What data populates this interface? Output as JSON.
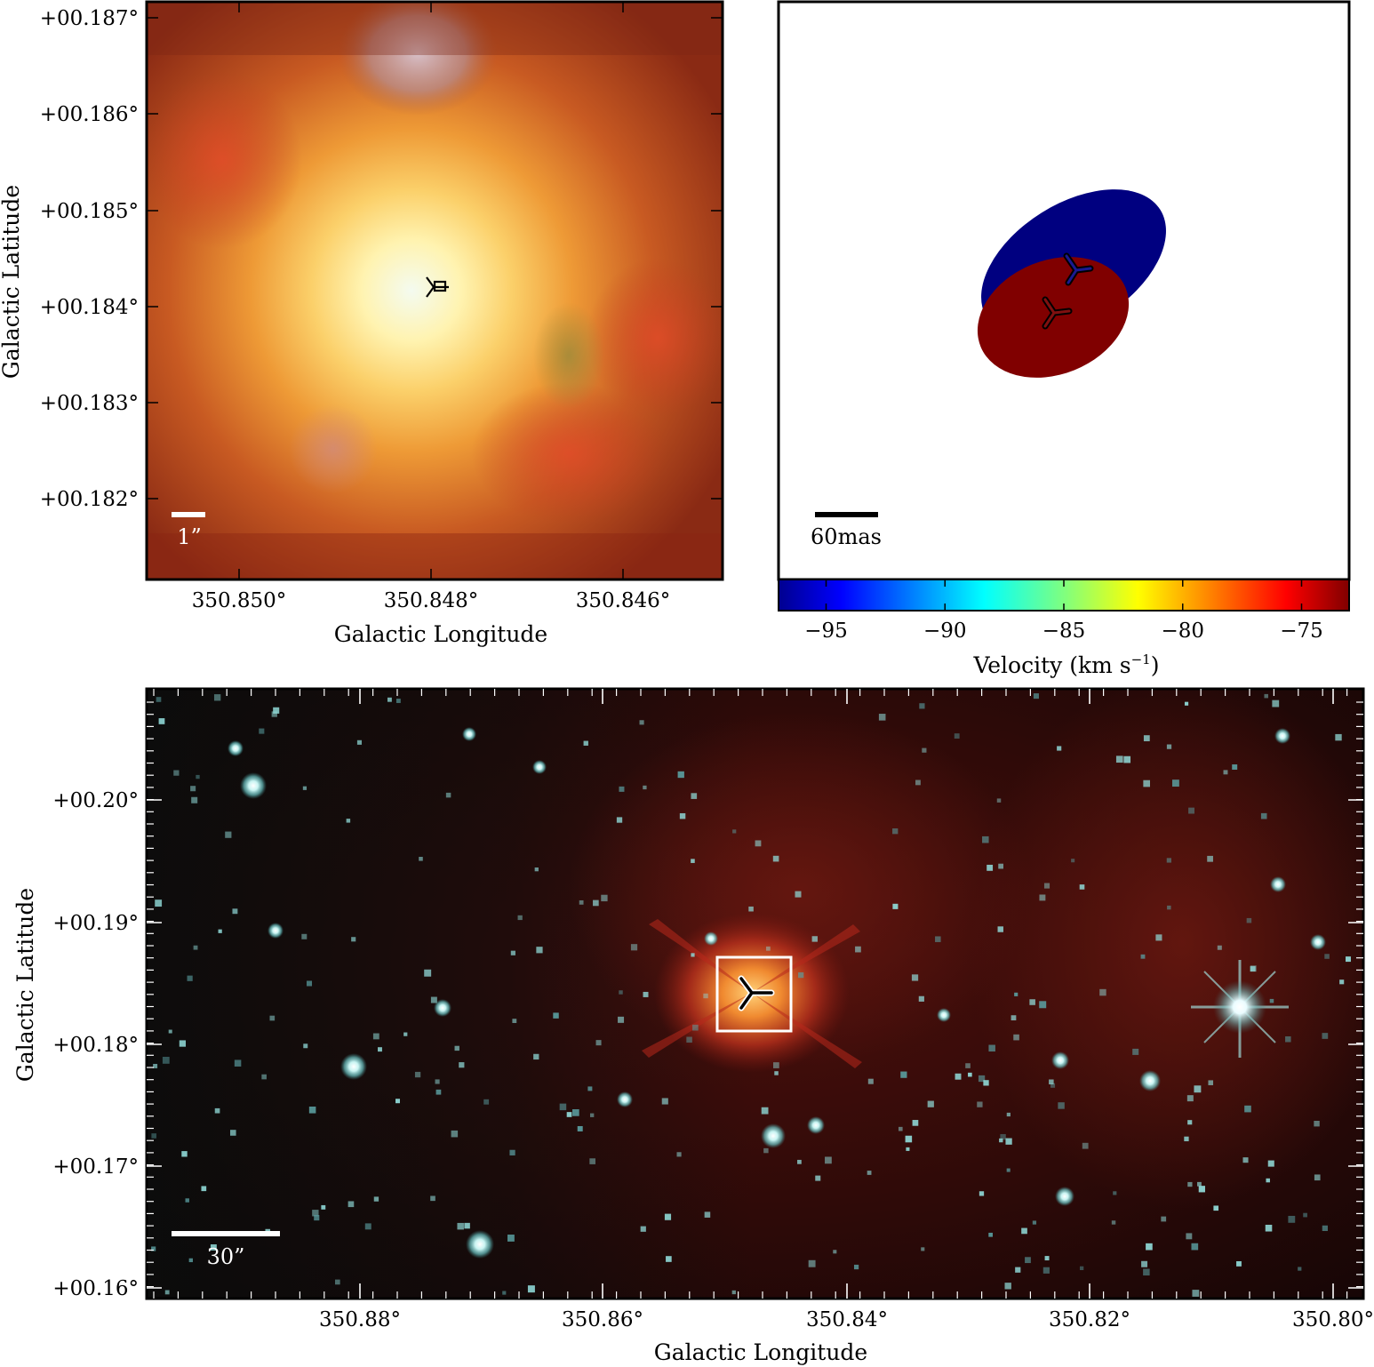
{
  "figure": {
    "top_left_panel": {
      "xlabel": "Galactic Longitude",
      "ylabel": "Galactic Latitude",
      "x_ticks": [
        "350.850°",
        "350.848°",
        "350.846°"
      ],
      "y_ticks": [
        "+00.187°",
        "+00.186°",
        "+00.185°",
        "+00.184°",
        "+00.183°",
        "+00.182°"
      ],
      "scale_bar_label": "1”",
      "image": "false-color infrared zoom of a bright compact source with maser markers at center",
      "colors": {
        "core": "#fffbe6",
        "mid": "#f3a23c",
        "outer": "#b8401f",
        "edge": "#7a1e10",
        "top_blob": "#c9a6b0"
      }
    },
    "top_right_panel": {
      "scale_bar_label": "60mas",
      "colorbar": {
        "label": "Velocity (km s",
        "label_sup": "−1",
        "label_end": ")",
        "ticks": [
          "−95",
          "−90",
          "−85",
          "−80",
          "−75"
        ],
        "range": [
          -97,
          -73
        ]
      },
      "colors": {
        "blue_spot": "#000080",
        "red_spot": "#800000"
      }
    },
    "bottom_panel": {
      "xlabel": "Galactic Longitude",
      "ylabel": "Galactic Latitude",
      "x_ticks": [
        "350.88°",
        "350.86°",
        "350.84°",
        "350.82°",
        "350.80°"
      ],
      "y_ticks": [
        "+00.20°",
        "+00.19°",
        "+00.18°",
        "+00.17°",
        "+00.16°"
      ],
      "scale_bar_label": "30”",
      "image": "wide-field near-infrared star field with reddish nebulosity, boxed region marking the zoomed source",
      "colors": {
        "background": "#1c0808",
        "nebula": "#5a1410",
        "stars": "#bff0ee"
      }
    }
  }
}
